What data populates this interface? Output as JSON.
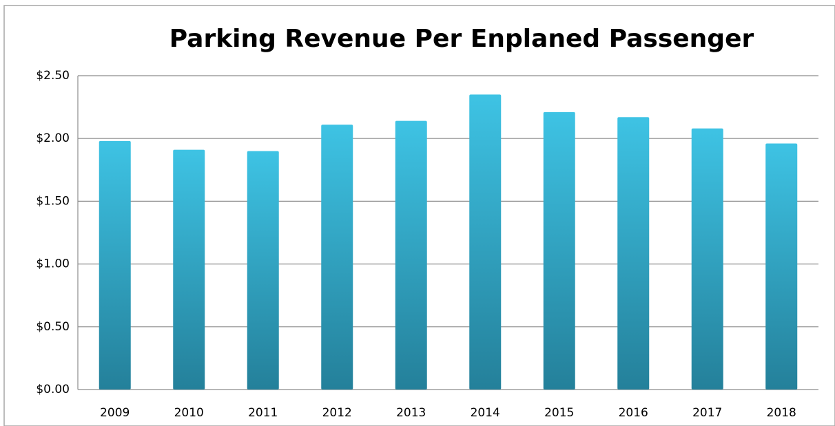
{
  "chart_data": {
    "type": "bar",
    "title": "Parking Revenue Per Enplaned Passenger",
    "categories": [
      "2009",
      "2010",
      "2011",
      "2012",
      "2013",
      "2014",
      "2015",
      "2016",
      "2017",
      "2018"
    ],
    "values": [
      1.98,
      1.91,
      1.9,
      2.11,
      2.14,
      2.35,
      2.21,
      2.17,
      2.08,
      1.96
    ],
    "color": "#3ec3e4",
    "ylim": [
      0,
      2.5
    ],
    "yticks": [
      {
        "value": 0,
        "label": "$0.00"
      },
      {
        "value": 0.5,
        "label": "$0.50"
      },
      {
        "value": 1,
        "label": "$1.00"
      },
      {
        "value": 1.5,
        "label": "$1.50"
      },
      {
        "value": 2,
        "label": "$2.00"
      },
      {
        "value": 2.5,
        "label": "$2.50"
      }
    ],
    "grid": true
  }
}
